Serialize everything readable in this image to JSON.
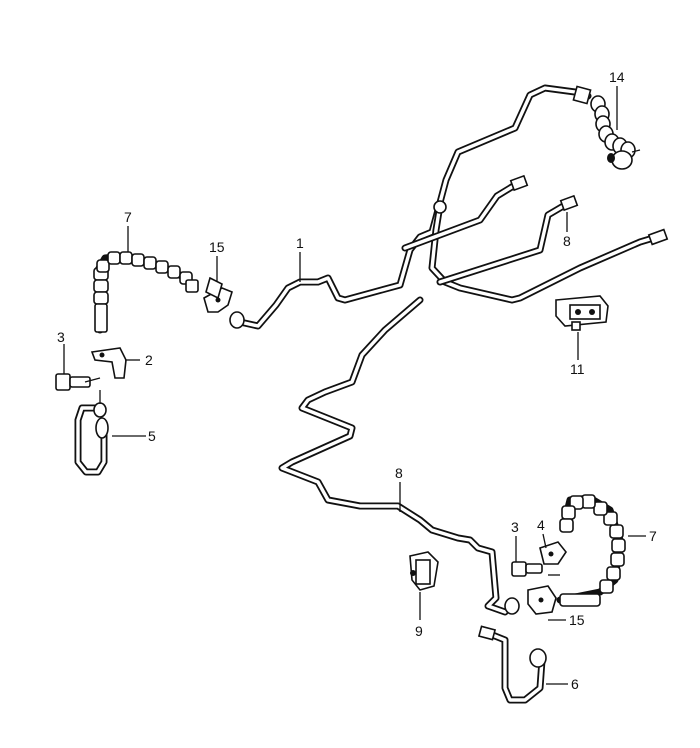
{
  "diagram": {
    "callouts": [
      {
        "id": "c-14",
        "label": "14"
      },
      {
        "id": "c-7-top",
        "label": "7"
      },
      {
        "id": "c-15-top",
        "label": "15"
      },
      {
        "id": "c-1",
        "label": "1"
      },
      {
        "id": "c-8-top",
        "label": "8"
      },
      {
        "id": "c-3-left",
        "label": "3"
      },
      {
        "id": "c-2",
        "label": "2"
      },
      {
        "id": "c-11",
        "label": "11"
      },
      {
        "id": "c-5",
        "label": "5"
      },
      {
        "id": "c-8-mid",
        "label": "8"
      },
      {
        "id": "c-3-right",
        "label": "3"
      },
      {
        "id": "c-4",
        "label": "4"
      },
      {
        "id": "c-7-right",
        "label": "7"
      },
      {
        "id": "c-9",
        "label": "9"
      },
      {
        "id": "c-15-bottom",
        "label": "15"
      },
      {
        "id": "c-6",
        "label": "6"
      }
    ]
  }
}
